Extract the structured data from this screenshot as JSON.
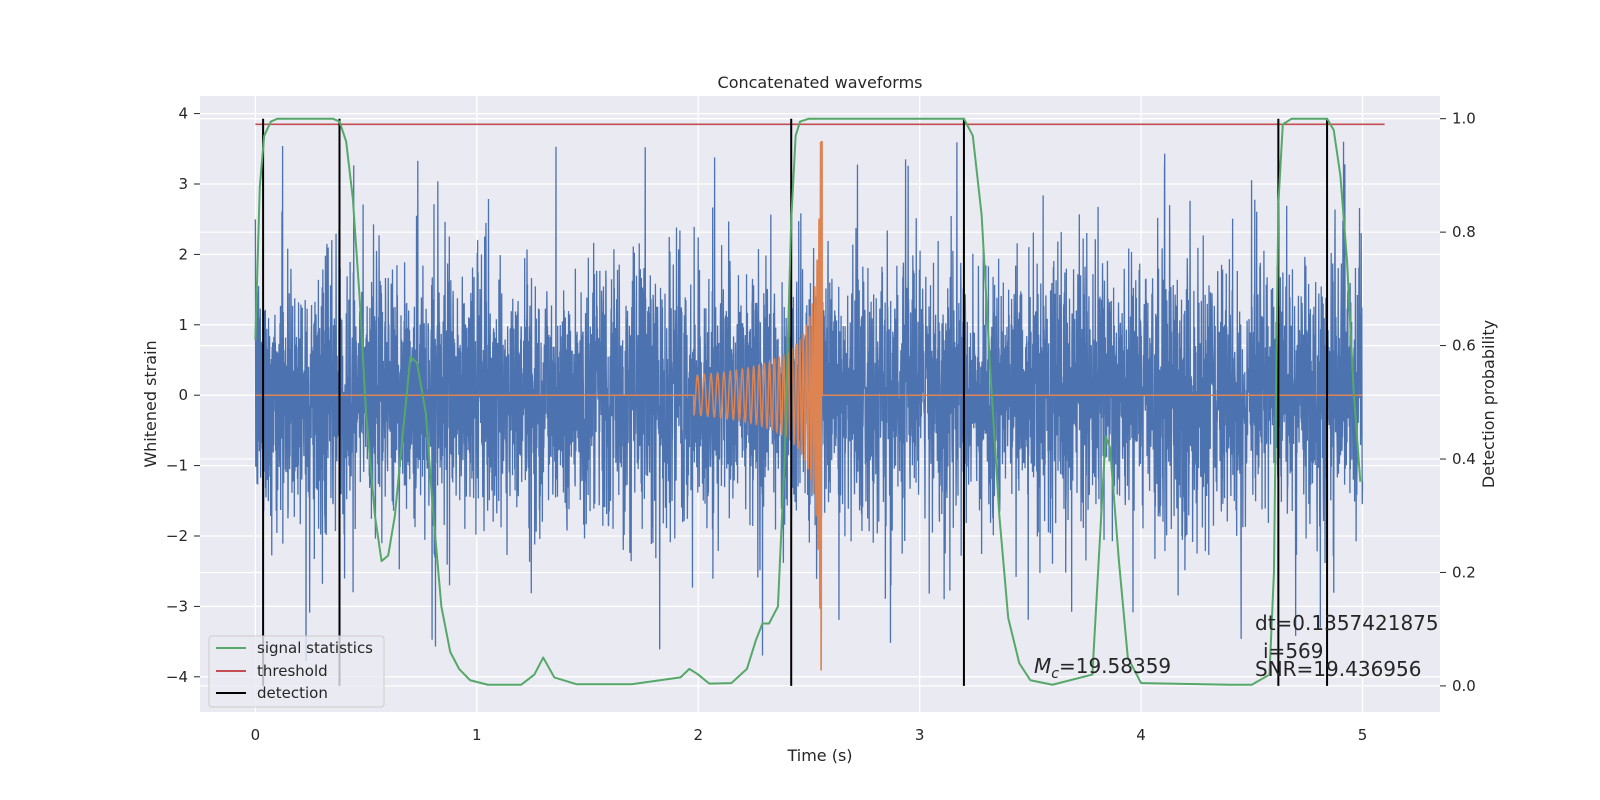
{
  "chart_data": {
    "type": "line",
    "title": "Concatenated waveforms",
    "xlabel": "Time (s)",
    "ylabel": "Whitened strain",
    "y2label": "Detection probability",
    "xlim": [
      -0.25,
      5.35
    ],
    "ylim": [
      -4.5,
      4.25
    ],
    "y2lim": [
      -0.046,
      1.04
    ],
    "xticks": [
      0,
      1,
      2,
      3,
      4,
      5
    ],
    "yticks": [
      -4,
      -3,
      -2,
      -1,
      0,
      1,
      2,
      3,
      4
    ],
    "y2ticks": [
      0.0,
      0.2,
      0.4,
      0.6,
      0.8,
      1.0
    ],
    "grid": true,
    "legend_position": "lower-left",
    "colors": {
      "noise": "#4c72b0",
      "template": "#dd8452",
      "signal_statistics": "#55a868",
      "threshold": "#c44e52",
      "detection": "#000000",
      "background": "#eaeaf2"
    },
    "series": [
      {
        "name": "signal statistics",
        "axis": "right",
        "color": "#55a868"
      },
      {
        "name": "threshold",
        "axis": "right",
        "color": "#c44e52",
        "value": 0.99,
        "x": [
          0.0,
          5.1
        ]
      },
      {
        "name": "detection",
        "axis": "right",
        "color": "#000000",
        "x": [
          0.035,
          0.38,
          2.42,
          3.2,
          4.62,
          4.84
        ]
      }
    ],
    "signal_statistics": {
      "x": [
        0.0,
        0.02,
        0.04,
        0.07,
        0.1,
        0.2,
        0.3,
        0.35,
        0.38,
        0.41,
        0.44,
        0.47,
        0.5,
        0.54,
        0.57,
        0.6,
        0.63,
        0.66,
        0.7,
        0.73,
        0.77,
        0.8,
        0.84,
        0.88,
        0.92,
        0.97,
        1.05,
        1.2,
        1.26,
        1.3,
        1.35,
        1.45,
        1.7,
        1.92,
        1.96,
        2.0,
        2.05,
        2.15,
        2.22,
        2.26,
        2.29,
        2.32,
        2.36,
        2.39,
        2.42,
        2.44,
        2.46,
        2.5,
        2.6,
        3.0,
        3.2,
        3.24,
        3.28,
        3.32,
        3.36,
        3.4,
        3.45,
        3.5,
        3.6,
        3.78,
        3.82,
        3.84,
        3.86,
        3.9,
        3.94,
        4.0,
        4.4,
        4.5,
        4.58,
        4.6,
        4.62,
        4.64,
        4.68,
        4.72,
        4.84,
        4.87,
        4.9,
        4.93,
        4.96,
        4.99
      ],
      "y": [
        0.61,
        0.88,
        0.97,
        0.995,
        1.0,
        1.0,
        1.0,
        1.0,
        0.995,
        0.96,
        0.86,
        0.69,
        0.48,
        0.3,
        0.22,
        0.23,
        0.3,
        0.42,
        0.58,
        0.57,
        0.48,
        0.32,
        0.14,
        0.06,
        0.03,
        0.01,
        0.002,
        0.002,
        0.02,
        0.05,
        0.015,
        0.003,
        0.003,
        0.015,
        0.03,
        0.02,
        0.004,
        0.005,
        0.03,
        0.08,
        0.11,
        0.11,
        0.14,
        0.4,
        0.82,
        0.97,
        0.995,
        1.0,
        1.0,
        1.0,
        1.0,
        0.97,
        0.83,
        0.55,
        0.3,
        0.12,
        0.04,
        0.01,
        0.002,
        0.02,
        0.3,
        0.44,
        0.42,
        0.22,
        0.05,
        0.005,
        0.002,
        0.002,
        0.02,
        0.2,
        0.85,
        0.99,
        1.0,
        1.0,
        1.0,
        0.98,
        0.9,
        0.75,
        0.52,
        0.36
      ]
    },
    "annotations": [
      {
        "id": "mc",
        "label": "M",
        "subscript": "c",
        "value": "=19.58359"
      },
      {
        "id": "dt",
        "text": "dt=0.1357421875"
      },
      {
        "id": "i",
        "text": "i=569"
      },
      {
        "id": "snr",
        "text": "SNR=19.436956"
      }
    ]
  }
}
